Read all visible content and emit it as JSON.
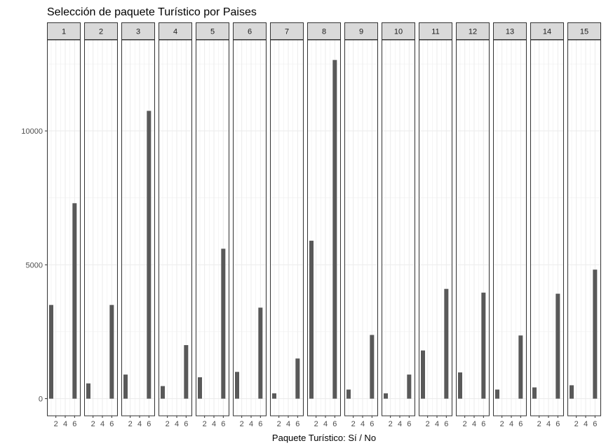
{
  "chart_data": {
    "type": "bar",
    "title": "Selección de paquete Turístico por Paises",
    "xlabel": "Paquete Turístico: Sí / No",
    "ylabel": "",
    "facets": [
      "1",
      "2",
      "3",
      "4",
      "5",
      "6",
      "7",
      "8",
      "9",
      "10",
      "11",
      "12",
      "13",
      "14",
      "15"
    ],
    "x_ticks": [
      2,
      4,
      6
    ],
    "x_tick_labels": [
      "2",
      "4",
      "6"
    ],
    "xlim": [
      0.1,
      7.3
    ],
    "y_ticks": [
      0,
      5000,
      10000
    ],
    "y_tick_labels": [
      "0",
      "5000",
      "10000"
    ],
    "ylim": [
      -640,
      13400
    ],
    "grid": true,
    "bar_x": [
      1,
      6
    ],
    "series_values": [
      [
        3500,
        7300
      ],
      [
        570,
        3500
      ],
      [
        900,
        10750
      ],
      [
        470,
        2000
      ],
      [
        800,
        5600
      ],
      [
        1000,
        3400
      ],
      [
        200,
        1500
      ],
      [
        5900,
        12650
      ],
      [
        340,
        2380
      ],
      [
        200,
        900
      ],
      [
        1800,
        4100
      ],
      [
        980,
        3960
      ],
      [
        340,
        2360
      ],
      [
        420,
        3920
      ],
      [
        500,
        4820
      ]
    ],
    "colors": {
      "bar": "#595959",
      "grid": "#ebebeb",
      "strip_fill": "#d9d9d9",
      "panel_border": "#333333"
    }
  }
}
